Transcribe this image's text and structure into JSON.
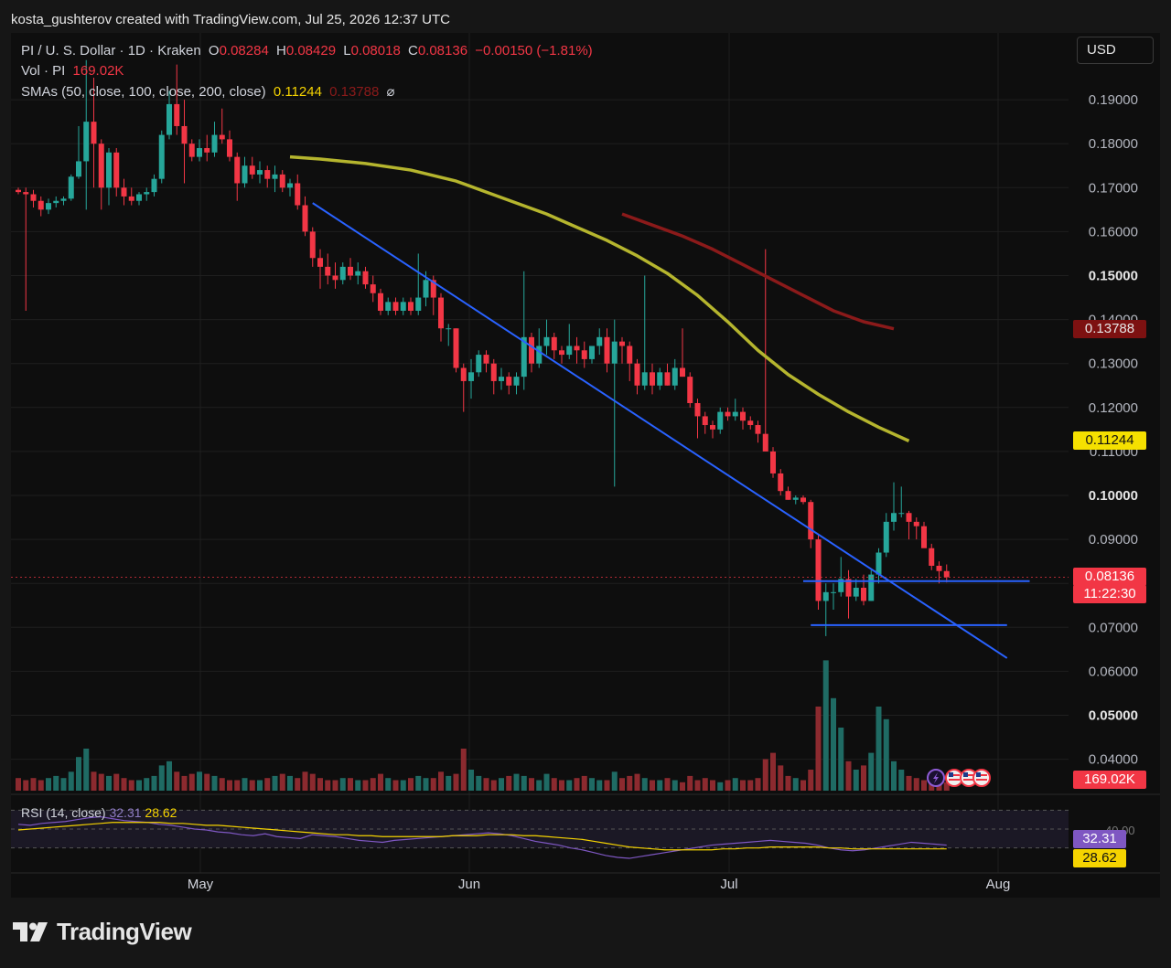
{
  "attribution": "kosta_gushterov created with TradingView.com, Jul 25, 2026 12:37 UTC",
  "header": {
    "symbol": "PI / U. S. Dollar · 1D · Kraken",
    "ohlc": {
      "o_label": "O",
      "o": "0.08284",
      "h_label": "H",
      "h": "0.08429",
      "l_label": "L",
      "l": "0.08018",
      "c_label": "C",
      "c": "0.08136",
      "change": "−0.00150 (−1.81%)"
    },
    "vol_label": "Vol · PI",
    "vol_value": "169.02K",
    "sma_label": "SMAs (50, close, 100, close, 200, close)",
    "sma_100": "0.11244",
    "sma_200": "0.13788",
    "sma_hide_icon": "⌀"
  },
  "currency_button": "USD",
  "rsi": {
    "label": "RSI (14, close)",
    "value": "32.31",
    "ma": "28.62",
    "upper_tick": "40.00"
  },
  "price_tags": {
    "sma_200": "0.13788",
    "sma_100": "0.11244",
    "last_price": "0.08136",
    "countdown": "11:22:30",
    "volume": "169.02K",
    "rsi_value": "32.31",
    "rsi_ma": "28.62"
  },
  "colors": {
    "up": "#26a69a",
    "down": "#f23645",
    "sma100": "#b5b52e",
    "sma200": "#8b1a1a",
    "trendline": "#2962ff",
    "rsi": "#7e57c2",
    "rsi_ma": "#f5d300"
  },
  "logo_text": "TradingView",
  "chart_data": {
    "type": "candlestick",
    "y_axis": {
      "ticks": [
        "0.19000",
        "0.18000",
        "0.17000",
        "0.16000",
        "0.15000",
        "0.14000",
        "0.13000",
        "0.12000",
        "0.11000",
        "0.10000",
        "0.09000",
        "0.08000",
        "0.07000",
        "0.06000",
        "0.05000",
        "0.04000"
      ],
      "bold_ticks": [
        "0.15000",
        "0.10000",
        "0.05000"
      ],
      "range": [
        0.035,
        0.2
      ]
    },
    "x_axis": {
      "labels": [
        "May",
        "Jun",
        "Jul",
        "Aug"
      ]
    },
    "candles": [
      [
        0.1695,
        0.17,
        0.1685,
        0.169
      ],
      [
        0.169,
        0.17,
        0.142,
        0.1685
      ],
      [
        0.1685,
        0.1695,
        0.1655,
        0.167
      ],
      [
        0.167,
        0.168,
        0.1635,
        0.165
      ],
      [
        0.165,
        0.1675,
        0.164,
        0.1665
      ],
      [
        0.1665,
        0.168,
        0.1655,
        0.167
      ],
      [
        0.167,
        0.168,
        0.166,
        0.1675
      ],
      [
        0.1675,
        0.173,
        0.167,
        0.1725
      ],
      [
        0.1725,
        0.184,
        0.172,
        0.176
      ],
      [
        0.176,
        0.199,
        0.165,
        0.185
      ],
      [
        0.185,
        0.195,
        0.17,
        0.18
      ],
      [
        0.18,
        0.181,
        0.165,
        0.17
      ],
      [
        0.17,
        0.179,
        0.166,
        0.178
      ],
      [
        0.178,
        0.179,
        0.168,
        0.17
      ],
      [
        0.17,
        0.172,
        0.166,
        0.168
      ],
      [
        0.168,
        0.17,
        0.166,
        0.167
      ],
      [
        0.167,
        0.169,
        0.166,
        0.1685
      ],
      [
        0.1685,
        0.17,
        0.167,
        0.169
      ],
      [
        0.169,
        0.173,
        0.168,
        0.172
      ],
      [
        0.172,
        0.183,
        0.171,
        0.182
      ],
      [
        0.182,
        0.192,
        0.181,
        0.189
      ],
      [
        0.189,
        0.198,
        0.182,
        0.184
      ],
      [
        0.184,
        0.19,
        0.171,
        0.18
      ],
      [
        0.18,
        0.181,
        0.176,
        0.177
      ],
      [
        0.177,
        0.181,
        0.176,
        0.179
      ],
      [
        0.179,
        0.182,
        0.176,
        0.178
      ],
      [
        0.178,
        0.185,
        0.177,
        0.182
      ],
      [
        0.182,
        0.188,
        0.18,
        0.181
      ],
      [
        0.181,
        0.183,
        0.176,
        0.177
      ],
      [
        0.177,
        0.178,
        0.167,
        0.171
      ],
      [
        0.171,
        0.177,
        0.17,
        0.175
      ],
      [
        0.175,
        0.177,
        0.172,
        0.173
      ],
      [
        0.173,
        0.176,
        0.171,
        0.174
      ],
      [
        0.174,
        0.175,
        0.17,
        0.172
      ],
      [
        0.172,
        0.175,
        0.169,
        0.173
      ],
      [
        0.173,
        0.174,
        0.169,
        0.17
      ],
      [
        0.17,
        0.172,
        0.168,
        0.171
      ],
      [
        0.171,
        0.173,
        0.165,
        0.166
      ],
      [
        0.166,
        0.168,
        0.159,
        0.16
      ],
      [
        0.16,
        0.161,
        0.152,
        0.154
      ],
      [
        0.154,
        0.156,
        0.147,
        0.152
      ],
      [
        0.152,
        0.155,
        0.148,
        0.15
      ],
      [
        0.15,
        0.153,
        0.147,
        0.149
      ],
      [
        0.149,
        0.153,
        0.148,
        0.152
      ],
      [
        0.152,
        0.154,
        0.149,
        0.15
      ],
      [
        0.15,
        0.153,
        0.148,
        0.151
      ],
      [
        0.151,
        0.152,
        0.147,
        0.148
      ],
      [
        0.148,
        0.15,
        0.144,
        0.146
      ],
      [
        0.146,
        0.147,
        0.141,
        0.142
      ],
      [
        0.142,
        0.145,
        0.141,
        0.144
      ],
      [
        0.144,
        0.145,
        0.141,
        0.142
      ],
      [
        0.142,
        0.145,
        0.141,
        0.144
      ],
      [
        0.144,
        0.145,
        0.141,
        0.142
      ],
      [
        0.142,
        0.155,
        0.141,
        0.145
      ],
      [
        0.145,
        0.151,
        0.143,
        0.149
      ],
      [
        0.149,
        0.15,
        0.141,
        0.145
      ],
      [
        0.145,
        0.146,
        0.135,
        0.138
      ],
      [
        0.138,
        0.139,
        0.134,
        0.138
      ],
      [
        0.138,
        0.138,
        0.128,
        0.129
      ],
      [
        0.129,
        0.13,
        0.119,
        0.126
      ],
      [
        0.126,
        0.131,
        0.122,
        0.128
      ],
      [
        0.128,
        0.133,
        0.127,
        0.132
      ],
      [
        0.132,
        0.133,
        0.128,
        0.13
      ],
      [
        0.13,
        0.131,
        0.123,
        0.126
      ],
      [
        0.126,
        0.129,
        0.124,
        0.127
      ],
      [
        0.127,
        0.128,
        0.123,
        0.125
      ],
      [
        0.125,
        0.128,
        0.123,
        0.127
      ],
      [
        0.127,
        0.151,
        0.124,
        0.136
      ],
      [
        0.136,
        0.137,
        0.128,
        0.13
      ],
      [
        0.13,
        0.138,
        0.129,
        0.134
      ],
      [
        0.134,
        0.14,
        0.132,
        0.136
      ],
      [
        0.136,
        0.137,
        0.131,
        0.133
      ],
      [
        0.133,
        0.134,
        0.13,
        0.132
      ],
      [
        0.132,
        0.139,
        0.131,
        0.134
      ],
      [
        0.134,
        0.136,
        0.13,
        0.133
      ],
      [
        0.133,
        0.135,
        0.129,
        0.131
      ],
      [
        0.131,
        0.134,
        0.13,
        0.134
      ],
      [
        0.134,
        0.138,
        0.132,
        0.136
      ],
      [
        0.136,
        0.138,
        0.128,
        0.13
      ],
      [
        0.13,
        0.14,
        0.102,
        0.135
      ],
      [
        0.135,
        0.136,
        0.13,
        0.134
      ],
      [
        0.134,
        0.135,
        0.126,
        0.13
      ],
      [
        0.13,
        0.131,
        0.123,
        0.125
      ],
      [
        0.125,
        0.15,
        0.124,
        0.128
      ],
      [
        0.128,
        0.13,
        0.123,
        0.125
      ],
      [
        0.125,
        0.129,
        0.124,
        0.128
      ],
      [
        0.128,
        0.13,
        0.125,
        0.125
      ],
      [
        0.125,
        0.131,
        0.124,
        0.129
      ],
      [
        0.129,
        0.138,
        0.127,
        0.127
      ],
      [
        0.127,
        0.128,
        0.12,
        0.121
      ],
      [
        0.121,
        0.122,
        0.113,
        0.118
      ],
      [
        0.118,
        0.119,
        0.114,
        0.116
      ],
      [
        0.116,
        0.117,
        0.113,
        0.115
      ],
      [
        0.115,
        0.12,
        0.114,
        0.119
      ],
      [
        0.119,
        0.12,
        0.117,
        0.118
      ],
      [
        0.118,
        0.122,
        0.117,
        0.119
      ],
      [
        0.119,
        0.12,
        0.115,
        0.117
      ],
      [
        0.117,
        0.118,
        0.115,
        0.116
      ],
      [
        0.116,
        0.117,
        0.112,
        0.114
      ],
      [
        0.114,
        0.156,
        0.111,
        0.11
      ],
      [
        0.11,
        0.111,
        0.104,
        0.105
      ],
      [
        0.105,
        0.106,
        0.1,
        0.101
      ],
      [
        0.101,
        0.102,
        0.099,
        0.099
      ],
      [
        0.099,
        0.1,
        0.098,
        0.0995
      ],
      [
        0.0995,
        0.1,
        0.098,
        0.0985
      ],
      [
        0.0985,
        0.099,
        0.088,
        0.09
      ],
      [
        0.09,
        0.091,
        0.074,
        0.076
      ],
      [
        0.076,
        0.08,
        0.068,
        0.078
      ],
      [
        0.078,
        0.08,
        0.074,
        0.078
      ],
      [
        0.078,
        0.086,
        0.077,
        0.081
      ],
      [
        0.081,
        0.083,
        0.072,
        0.077
      ],
      [
        0.077,
        0.081,
        0.076,
        0.079
      ],
      [
        0.079,
        0.082,
        0.075,
        0.076
      ],
      [
        0.076,
        0.083,
        0.076,
        0.082
      ],
      [
        0.082,
        0.088,
        0.08,
        0.087
      ],
      [
        0.087,
        0.096,
        0.086,
        0.094
      ],
      [
        0.094,
        0.103,
        0.092,
        0.096
      ],
      [
        0.096,
        0.102,
        0.095,
        0.096
      ],
      [
        0.096,
        0.0965,
        0.09,
        0.094
      ],
      [
        0.094,
        0.095,
        0.09,
        0.093
      ],
      [
        0.093,
        0.094,
        0.089,
        0.088
      ],
      [
        0.088,
        0.089,
        0.083,
        0.084
      ],
      [
        0.084,
        0.085,
        0.08,
        0.0828
      ],
      [
        0.0828,
        0.0843,
        0.0802,
        0.0814
      ]
    ],
    "volume": [
      6,
      5,
      6,
      5,
      6,
      7,
      6,
      9,
      16,
      20,
      9,
      8,
      7,
      8,
      6,
      5,
      5,
      6,
      7,
      12,
      14,
      9,
      7,
      8,
      9,
      8,
      7,
      6,
      5,
      5,
      6,
      5,
      5,
      6,
      7,
      8,
      7,
      6,
      9,
      8,
      6,
      5,
      5,
      6,
      6,
      5,
      5,
      6,
      8,
      6,
      5,
      5,
      6,
      7,
      6,
      6,
      9,
      7,
      8,
      20,
      10,
      7,
      6,
      5,
      6,
      7,
      8,
      7,
      6,
      5,
      8,
      6,
      5,
      5,
      6,
      7,
      6,
      5,
      5,
      9,
      6,
      7,
      8,
      6,
      5,
      5,
      6,
      5,
      4,
      7,
      5,
      6,
      5,
      4,
      5,
      6,
      5,
      5,
      6,
      15,
      18,
      12,
      7,
      6,
      5,
      10,
      40,
      62,
      44,
      30,
      14,
      10,
      12,
      18,
      40,
      34,
      14,
      10,
      7,
      6,
      5,
      5,
      5,
      4
    ],
    "sma_100": [
      [
        36,
        0.177
      ],
      [
        40,
        0.1765
      ],
      [
        46,
        0.1755
      ],
      [
        52,
        0.174
      ],
      [
        58,
        0.1715
      ],
      [
        62,
        0.169
      ],
      [
        66,
        0.1665
      ],
      [
        70,
        0.164
      ],
      [
        74,
        0.161
      ],
      [
        78,
        0.158
      ],
      [
        82,
        0.1545
      ],
      [
        86,
        0.1505
      ],
      [
        90,
        0.1455
      ],
      [
        94,
        0.1395
      ],
      [
        98,
        0.133
      ],
      [
        102,
        0.1275
      ],
      [
        106,
        0.123
      ],
      [
        110,
        0.119
      ],
      [
        114,
        0.1155
      ],
      [
        118,
        0.1124
      ]
    ],
    "sma_200": [
      [
        80,
        0.164
      ],
      [
        84,
        0.1615
      ],
      [
        88,
        0.159
      ],
      [
        92,
        0.156
      ],
      [
        96,
        0.1525
      ],
      [
        100,
        0.149
      ],
      [
        104,
        0.1455
      ],
      [
        108,
        0.142
      ],
      [
        112,
        0.1395
      ],
      [
        116,
        0.1379
      ]
    ],
    "trendline": {
      "from": [
        0.1665,
        39
      ],
      "to": [
        0.063,
        131
      ]
    },
    "support_levels": [
      {
        "price": 0.0805,
        "from_index": 104,
        "to_index": 134
      },
      {
        "price": 0.0705,
        "from_index": 105,
        "to_index": 131
      }
    ],
    "rsi_series": [
      55,
      54,
      56,
      57,
      58,
      60,
      62,
      63,
      61,
      59,
      58,
      57,
      55,
      54,
      52,
      50,
      49,
      47,
      46,
      44,
      43,
      45,
      42,
      41,
      40,
      44,
      43,
      42,
      40,
      38,
      37,
      36,
      38,
      39,
      40,
      41,
      42,
      43,
      44,
      45,
      46,
      45,
      43,
      40,
      37,
      35,
      33,
      30,
      28,
      25,
      22,
      20,
      19,
      21,
      23,
      25,
      27,
      29,
      31,
      33,
      34,
      35,
      36,
      37,
      38,
      37,
      36,
      35,
      33,
      30,
      28,
      27,
      28,
      30,
      32,
      34,
      36,
      35,
      34,
      33
    ],
    "rsi_ma_series": [
      49,
      50,
      51,
      52,
      53,
      54,
      55,
      56,
      57,
      57,
      57,
      57,
      57,
      56,
      56,
      55,
      54,
      54,
      53,
      52,
      51,
      50,
      49,
      48,
      47,
      46,
      45,
      44,
      44,
      43,
      43,
      42,
      42,
      42,
      42,
      42,
      42,
      43,
      43,
      43,
      44,
      44,
      44,
      43,
      43,
      42,
      41,
      40,
      39,
      37,
      35,
      33,
      31,
      30,
      29,
      28,
      28,
      28,
      28,
      28,
      29,
      29,
      30,
      30,
      31,
      31,
      31,
      31,
      31,
      30,
      30,
      29,
      29,
      29,
      29,
      29,
      29,
      29,
      29,
      29
    ]
  }
}
